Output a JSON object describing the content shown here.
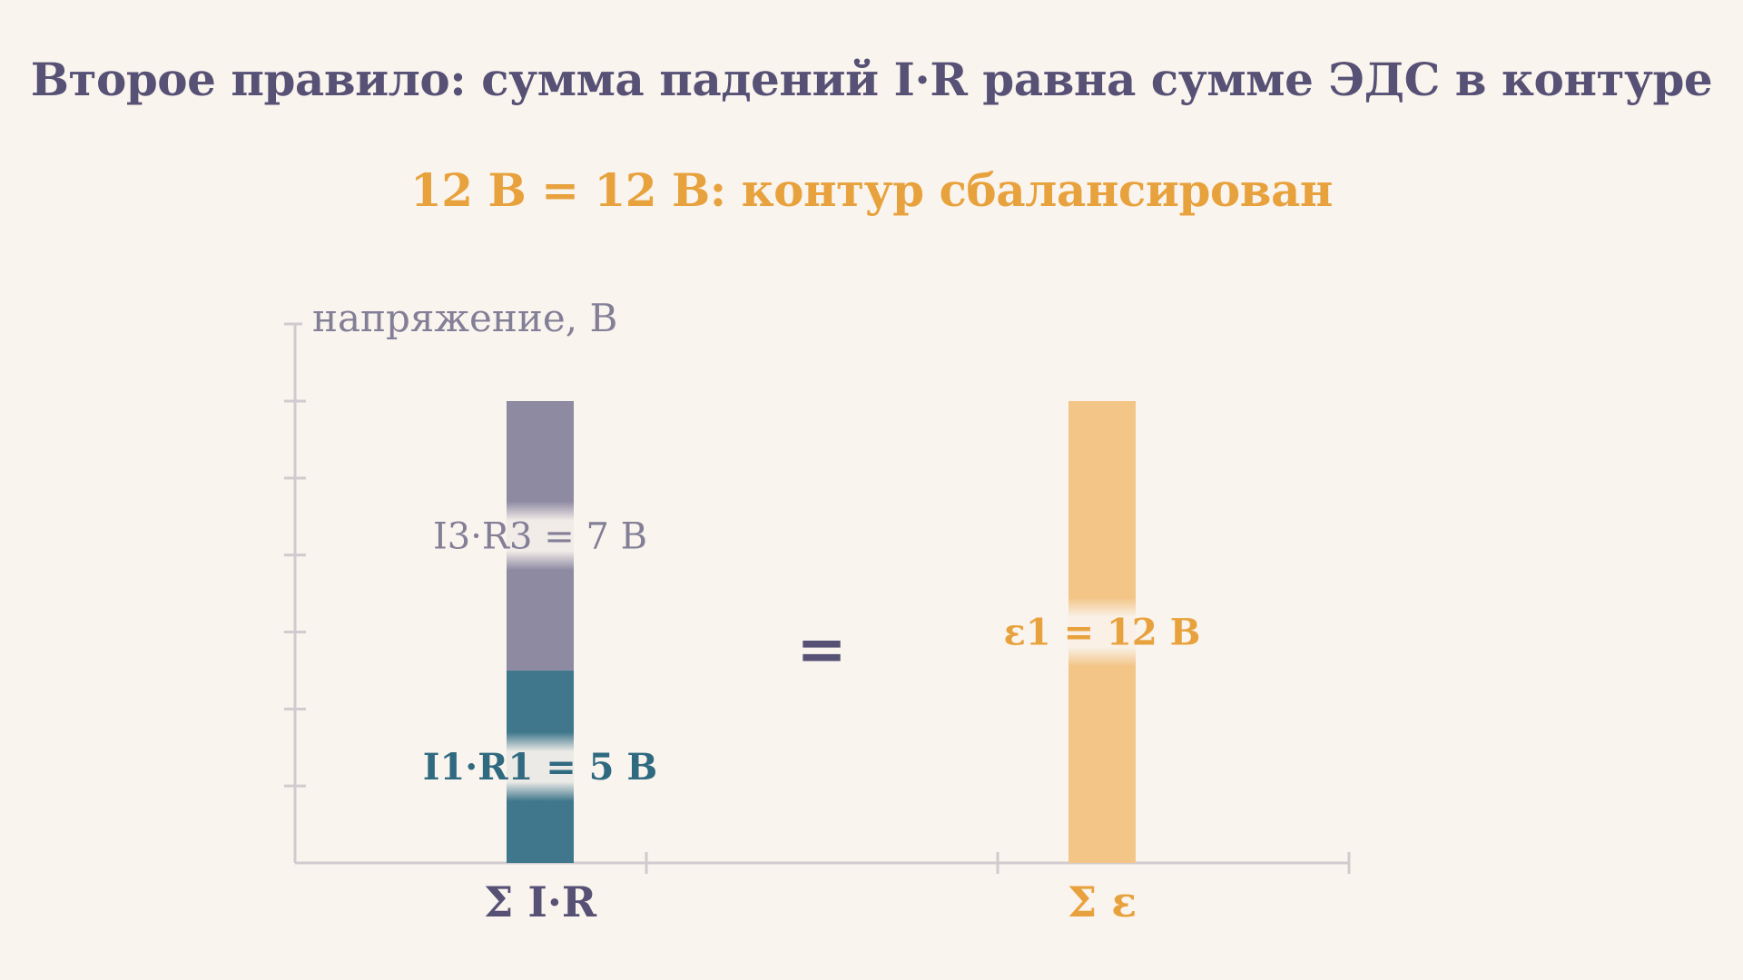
{
  "title": "Второе правило: сумма падений I·R равна сумме ЭДС в контуре",
  "subtitle": "12 В = 12 В: контур сбалансирован",
  "equals_sign": "=",
  "colors": {
    "title": "#565175",
    "accent": "#e8a23d",
    "ir_drop_r1": "#40778c",
    "ir_drop_r3": "#8e8aa2",
    "emf": "#f3c587",
    "axis": "#cfcbcf",
    "ylabel": "#837f97",
    "background": "#faf4ee"
  },
  "chart_data": {
    "type": "bar",
    "stacked": true,
    "ylabel": "напряжение, В",
    "ylim": [
      0,
      12
    ],
    "y_ticks": [
      0,
      2,
      4,
      6,
      8,
      10,
      12
    ],
    "grid": false,
    "categories": [
      "Σ I·R",
      "Σ ε"
    ],
    "category_colors": [
      "#565175",
      "#e8a23d"
    ],
    "series": [
      {
        "category": "Σ I·R",
        "segments": [
          {
            "label": "I1·R1 = 5 В",
            "value": 5,
            "color": "#40778c",
            "label_color": "#2f6a80",
            "bold": true
          },
          {
            "label": "I3·R3 = 7 В",
            "value": 7,
            "color": "#8e8aa2",
            "label_color": "#837f97",
            "bold": false
          }
        ]
      },
      {
        "category": "Σ ε",
        "segments": [
          {
            "label": "ε1 = 12 В",
            "value": 12,
            "color": "#f3c587",
            "label_color": "#e8a23d",
            "bold": true
          }
        ]
      }
    ]
  }
}
